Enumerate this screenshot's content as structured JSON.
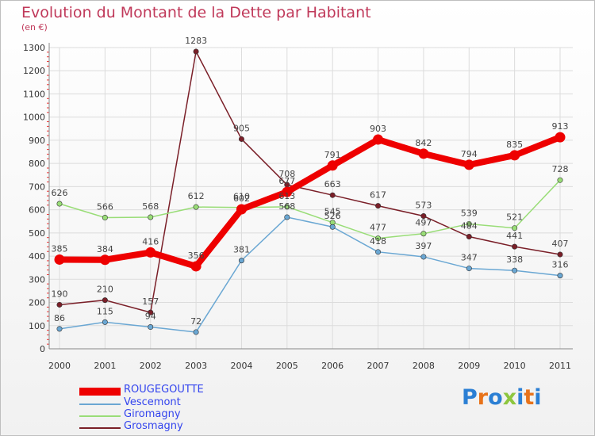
{
  "title": "Evolution du Montant de la Dette par Habitant",
  "subtitle": "(en €)",
  "logo": {
    "text": "Proxiti",
    "colors": [
      "#2b7fd4",
      "#e8731a",
      "#2b7fd4",
      "#8dc63f",
      "#2b7fd4",
      "#e8731a",
      "#2b7fd4"
    ]
  },
  "chart_data": {
    "type": "line",
    "title": "Evolution du Montant de la Dette par Habitant",
    "ylabel": "(en €)",
    "xlabel": "",
    "x": [
      "2000",
      "2001",
      "2002",
      "2003",
      "2004",
      "2005",
      "2006",
      "2007",
      "2008",
      "2009",
      "2010",
      "2011"
    ],
    "ylim": [
      0,
      1300
    ],
    "yticks": [
      "0",
      "100",
      "200",
      "300",
      "400",
      "500",
      "600",
      "700",
      "800",
      "900",
      "1000",
      "1100",
      "1200",
      "1300"
    ],
    "grid": true,
    "legend_position": "bottom-left",
    "series": [
      {
        "name": "Grosmagny",
        "color": "#7a1f28",
        "values": [
          190,
          210,
          157,
          1283,
          905,
          708,
          663,
          617,
          573,
          484,
          441,
          407
        ],
        "labels": [
          "190",
          "210",
          "157",
          "1283",
          "905",
          "708",
          "663",
          "617",
          "573",
          "484",
          "441",
          "407"
        ]
      },
      {
        "name": "Giromagny",
        "color": "#99dd77",
        "values": [
          626,
          566,
          568,
          612,
          610,
          613,
          545,
          477,
          497,
          539,
          521,
          728
        ],
        "labels": [
          "626",
          "566",
          "568",
          "612",
          "610",
          "613",
          "545",
          "477",
          "497",
          "539",
          "521",
          "728"
        ]
      },
      {
        "name": "Vescemont",
        "color": "#6aa7d3",
        "values": [
          86,
          115,
          94,
          72,
          381,
          568,
          526,
          418,
          397,
          347,
          338,
          316
        ],
        "labels": [
          "86",
          "115",
          "94",
          "72",
          "381",
          "568",
          "526",
          "418",
          "397",
          "347",
          "338",
          "316"
        ]
      },
      {
        "name": "ROUGEGOUTTE",
        "color": "#ee0000",
        "values": [
          385,
          384,
          416,
          356,
          602,
          677,
          791,
          903,
          842,
          794,
          835,
          913
        ],
        "labels": [
          "385",
          "384",
          "416",
          "356",
          "602",
          "677",
          "791",
          "903",
          "842",
          "794",
          "835",
          "913"
        ]
      }
    ],
    "legend": [
      {
        "name": "ROUGEGOUTTE",
        "color": "#ee0000",
        "text_color": "#3344ee"
      },
      {
        "name": "Vescemont",
        "color": "#6aa7d3",
        "text_color": "#3344ee"
      },
      {
        "name": "Giromagny",
        "color": "#99dd77",
        "text_color": "#3344ee"
      },
      {
        "name": "Grosmagny",
        "color": "#7a1f28",
        "text_color": "#3344ee"
      }
    ]
  }
}
